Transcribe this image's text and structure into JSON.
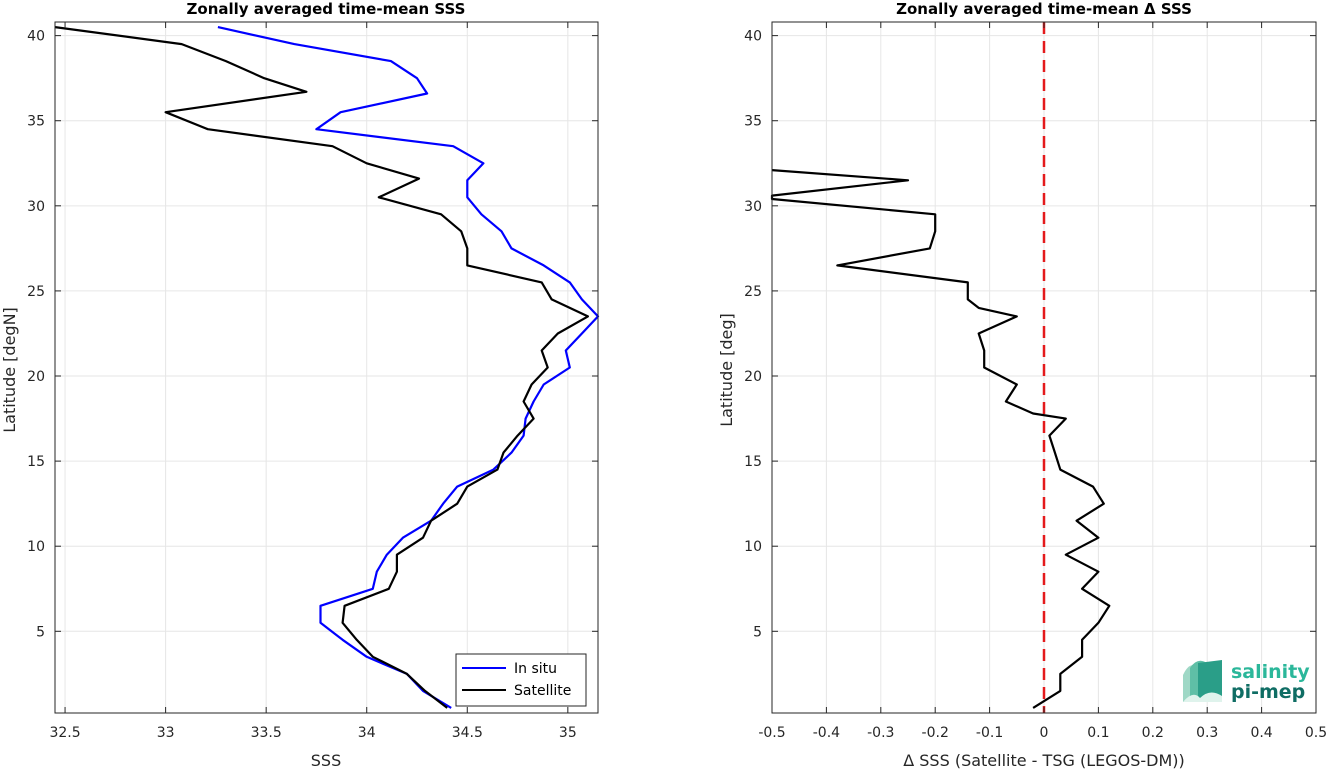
{
  "chart_data": [
    {
      "type": "line",
      "title": "Zonally averaged time-mean SSS",
      "xlabel": "SSS",
      "ylabel": "Latitude [degN]",
      "xlim": [
        32.45,
        35.15
      ],
      "ylim": [
        0.2,
        40.8
      ],
      "xticks": [
        32.5,
        33,
        33.5,
        34,
        34.5,
        35
      ],
      "xtick_labels": [
        "32.5",
        "33",
        "33.5",
        "34",
        "34.5",
        "35"
      ],
      "yticks": [
        5,
        10,
        15,
        20,
        25,
        30,
        35,
        40
      ],
      "ytick_labels": [
        "5",
        "10",
        "15",
        "20",
        "25",
        "30",
        "35",
        "40"
      ],
      "grid": true,
      "legend_position": "bottom-right",
      "series": [
        {
          "name": "In situ",
          "color": "#0000ff",
          "points": [
            [
              33.26,
              40.5
            ],
            [
              33.64,
              39.5
            ],
            [
              34.12,
              38.5
            ],
            [
              34.25,
              37.5
            ],
            [
              34.3,
              36.6
            ],
            [
              33.87,
              35.5
            ],
            [
              33.75,
              34.5
            ],
            [
              34.43,
              33.5
            ],
            [
              34.58,
              32.5
            ],
            [
              34.5,
              31.5
            ],
            [
              34.5,
              30.5
            ],
            [
              34.57,
              29.5
            ],
            [
              34.67,
              28.5
            ],
            [
              34.72,
              27.5
            ],
            [
              34.88,
              26.5
            ],
            [
              35.01,
              25.5
            ],
            [
              35.07,
              24.5
            ],
            [
              35.15,
              23.5
            ],
            [
              35.07,
              22.5
            ],
            [
              34.99,
              21.5
            ],
            [
              35.01,
              20.5
            ],
            [
              34.88,
              19.5
            ],
            [
              34.83,
              18.5
            ],
            [
              34.79,
              17.5
            ],
            [
              34.78,
              16.5
            ],
            [
              34.72,
              15.5
            ],
            [
              34.63,
              14.5
            ],
            [
              34.45,
              13.5
            ],
            [
              34.38,
              12.5
            ],
            [
              34.32,
              11.5
            ],
            [
              34.18,
              10.5
            ],
            [
              34.1,
              9.5
            ],
            [
              34.05,
              8.5
            ],
            [
              34.03,
              7.5
            ],
            [
              33.77,
              6.5
            ],
            [
              33.77,
              5.5
            ],
            [
              33.88,
              4.5
            ],
            [
              34.0,
              3.5
            ],
            [
              34.2,
              2.5
            ],
            [
              34.28,
              1.5
            ],
            [
              34.42,
              0.5
            ]
          ]
        },
        {
          "name": "Satellite",
          "color": "#000000",
          "points": [
            [
              32.45,
              40.5
            ],
            [
              33.08,
              39.5
            ],
            [
              33.3,
              38.5
            ],
            [
              33.49,
              37.5
            ],
            [
              33.7,
              36.7
            ],
            [
              33.0,
              35.5
            ],
            [
              33.21,
              34.5
            ],
            [
              33.83,
              33.5
            ],
            [
              34.0,
              32.5
            ],
            [
              34.26,
              31.6
            ],
            [
              34.06,
              30.5
            ],
            [
              34.37,
              29.5
            ],
            [
              34.47,
              28.5
            ],
            [
              34.5,
              27.5
            ],
            [
              34.5,
              26.5
            ],
            [
              34.87,
              25.5
            ],
            [
              34.92,
              24.5
            ],
            [
              35.1,
              23.5
            ],
            [
              34.95,
              22.5
            ],
            [
              34.87,
              21.5
            ],
            [
              34.9,
              20.5
            ],
            [
              34.82,
              19.5
            ],
            [
              34.78,
              18.5
            ],
            [
              34.83,
              17.5
            ],
            [
              34.75,
              16.5
            ],
            [
              34.68,
              15.5
            ],
            [
              34.65,
              14.5
            ],
            [
              34.5,
              13.5
            ],
            [
              34.45,
              12.5
            ],
            [
              34.32,
              11.5
            ],
            [
              34.28,
              10.5
            ],
            [
              34.15,
              9.5
            ],
            [
              34.15,
              8.5
            ],
            [
              34.11,
              7.5
            ],
            [
              33.89,
              6.5
            ],
            [
              33.88,
              5.5
            ],
            [
              33.95,
              4.5
            ],
            [
              34.03,
              3.5
            ],
            [
              34.2,
              2.5
            ],
            [
              34.29,
              1.5
            ],
            [
              34.4,
              0.5
            ]
          ]
        }
      ]
    },
    {
      "type": "line",
      "title": "Zonally averaged time-mean Δ SSS",
      "xlabel": "Δ SSS (Satellite - TSG (LEGOS-DM))",
      "ylabel": "Latitude [deg]",
      "xlim": [
        -0.5,
        0.5
      ],
      "ylim": [
        0.2,
        40.8
      ],
      "xticks": [
        -0.5,
        -0.4,
        -0.3,
        -0.2,
        -0.1,
        0,
        0.1,
        0.2,
        0.3,
        0.4,
        0.5
      ],
      "xtick_labels": [
        "-0.5",
        "-0.4",
        "-0.3",
        "-0.2",
        "-0.1",
        "0",
        "0.1",
        "0.2",
        "0.3",
        "0.4",
        "0.5"
      ],
      "yticks": [
        5,
        10,
        15,
        20,
        25,
        30,
        35,
        40
      ],
      "ytick_labels": [
        "5",
        "10",
        "15",
        "20",
        "25",
        "30",
        "35",
        "40"
      ],
      "grid": true,
      "zero_line": {
        "x": 0,
        "color": "#e41a1c",
        "style": "dashed"
      },
      "series": [
        {
          "color": "#000000",
          "points": [
            [
              -0.5,
              32.1
            ],
            [
              -0.25,
              31.5
            ],
            [
              -0.5,
              30.6
            ],
            [
              -0.5,
              30.4
            ],
            [
              -0.2,
              29.5
            ],
            [
              -0.2,
              28.5
            ],
            [
              -0.21,
              27.5
            ],
            [
              -0.38,
              26.5
            ],
            [
              -0.14,
              25.5
            ],
            [
              -0.14,
              24.5
            ],
            [
              -0.12,
              24.0
            ],
            [
              -0.05,
              23.5
            ],
            [
              -0.12,
              22.5
            ],
            [
              -0.11,
              21.5
            ],
            [
              -0.11,
              20.5
            ],
            [
              -0.05,
              19.5
            ],
            [
              -0.07,
              18.5
            ],
            [
              -0.02,
              17.8
            ],
            [
              0.04,
              17.5
            ],
            [
              0.01,
              16.5
            ],
            [
              0.02,
              15.5
            ],
            [
              0.03,
              14.5
            ],
            [
              0.09,
              13.5
            ],
            [
              0.11,
              12.5
            ],
            [
              0.06,
              11.5
            ],
            [
              0.1,
              10.5
            ],
            [
              0.04,
              9.5
            ],
            [
              0.1,
              8.5
            ],
            [
              0.07,
              7.5
            ],
            [
              0.12,
              6.5
            ],
            [
              0.1,
              5.5
            ],
            [
              0.07,
              4.5
            ],
            [
              0.07,
              3.5
            ],
            [
              0.03,
              2.5
            ],
            [
              0.03,
              1.5
            ],
            [
              -0.02,
              0.5
            ]
          ]
        }
      ]
    }
  ],
  "logo": {
    "line1": "salinity",
    "line2": "pi-mep"
  },
  "colors": {
    "axis": "#262626",
    "grid": "#e6e6e6"
  }
}
